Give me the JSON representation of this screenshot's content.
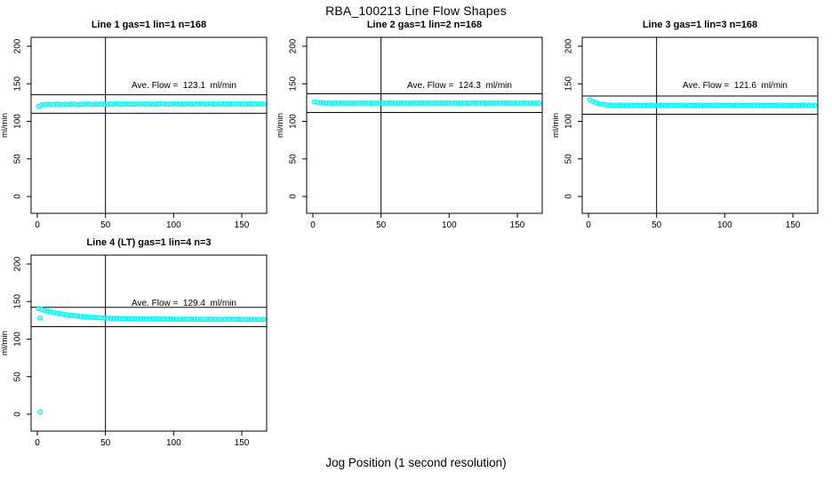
{
  "figure": {
    "title": "RBA_100213  Line Flow Shapes",
    "xlabel": "Jog Position (1 second resolution)",
    "ylabel": "ml/min",
    "background_color": "#ffffff",
    "point_color": "#00ffff",
    "line_color": "#000000"
  },
  "chart_data": [
    {
      "type": "scatter",
      "title": "Line 1 gas=1 lin=1 n=168",
      "annotation": "Ave. Flow =  123.1  ml/min",
      "avg_flow_ml_min": 123.1,
      "ylabel": "ml/min",
      "xticks": [
        0,
        50,
        100,
        150
      ],
      "yticks": [
        0,
        50,
        100,
        150,
        200
      ],
      "ylim": [
        0,
        200
      ],
      "vline_x": 50,
      "hlines": [
        135.4,
        110.8
      ],
      "x_start": 1,
      "x_step": 2.2,
      "values": [
        119.8,
        121.9,
        122.4,
        122.1,
        122.7,
        122.3,
        122.9,
        122.5,
        122.2,
        122.8,
        122.4,
        123.0,
        122.6,
        122.3,
        122.9,
        122.5,
        123.1,
        122.7,
        122.4,
        123.0,
        122.6,
        123.2,
        122.8,
        122.5,
        123.1,
        122.7,
        123.3,
        122.9,
        122.6,
        123.2,
        122.8,
        123.0,
        122.7,
        123.1,
        122.9,
        123.2,
        122.8,
        123.0,
        122.6,
        123.1,
        122.9,
        123.3,
        122.7,
        123.0,
        122.8,
        123.2,
        122.9,
        123.1,
        122.7,
        123.0,
        123.2,
        122.8,
        123.1,
        122.9,
        123.3,
        123.0,
        122.8,
        123.2,
        122.9,
        123.1,
        123.0,
        123.2,
        122.8,
        123.1,
        122.9,
        123.0,
        123.2,
        123.1,
        122.9,
        123.0,
        123.1,
        123.2,
        123.0,
        123.1,
        122.9,
        123.0
      ],
      "extra_points": []
    },
    {
      "type": "scatter",
      "title": "Line 2 gas=1 lin=2 n=168",
      "annotation": "Ave. Flow =  124.3  ml/min",
      "avg_flow_ml_min": 124.3,
      "ylabel": "ml/min",
      "xticks": [
        0,
        50,
        100,
        150
      ],
      "yticks": [
        0,
        50,
        100,
        150,
        200
      ],
      "ylim": [
        0,
        200
      ],
      "vline_x": 50,
      "hlines": [
        136.7,
        111.9
      ],
      "x_start": 1,
      "x_step": 2.2,
      "values": [
        126.0,
        125.2,
        124.8,
        124.5,
        124.3,
        124.6,
        124.2,
        124.5,
        124.1,
        124.4,
        124.2,
        124.6,
        124.3,
        124.1,
        124.5,
        124.2,
        124.4,
        124.3,
        124.6,
        124.2,
        124.4,
        124.1,
        124.5,
        124.3,
        124.2,
        124.6,
        124.3,
        124.4,
        124.2,
        124.5,
        124.3,
        124.1,
        124.4,
        124.2,
        124.6,
        124.3,
        124.5,
        124.2,
        124.4,
        124.3,
        124.1,
        124.5,
        124.3,
        124.6,
        124.2,
        124.4,
        124.3,
        124.5,
        124.1,
        124.3,
        124.4,
        124.2,
        124.6,
        124.3,
        124.4,
        124.2,
        124.5,
        124.3,
        124.1,
        124.4,
        124.3,
        124.6,
        124.2,
        124.4,
        124.3,
        124.5,
        124.2,
        124.4,
        124.3,
        124.1,
        124.5,
        124.3,
        124.4,
        124.2,
        124.3,
        124.4
      ],
      "extra_points": []
    },
    {
      "type": "scatter",
      "title": "Line 3 gas=1 lin=3 n=168",
      "annotation": "Ave. Flow =  121.6  ml/min",
      "avg_flow_ml_min": 121.6,
      "ylabel": "ml/min",
      "xticks": [
        0,
        50,
        100,
        150
      ],
      "yticks": [
        0,
        50,
        100,
        150,
        200
      ],
      "ylim": [
        0,
        200
      ],
      "vline_x": 50,
      "hlines": [
        133.8,
        109.4
      ],
      "x_start": 1,
      "x_step": 2.2,
      "values": [
        128.5,
        126.5,
        124.8,
        123.5,
        122.6,
        122.0,
        121.7,
        121.5,
        121.4,
        121.3,
        121.5,
        121.2,
        121.4,
        121.3,
        121.5,
        121.2,
        121.4,
        121.3,
        121.2,
        121.5,
        121.3,
        121.4,
        121.2,
        121.3,
        121.5,
        121.2,
        121.4,
        121.3,
        121.2,
        121.4,
        121.3,
        121.5,
        121.2,
        121.3,
        121.4,
        121.2,
        121.5,
        121.3,
        121.2,
        121.4,
        121.3,
        121.2,
        121.5,
        121.3,
        121.4,
        121.2,
        121.3,
        121.4,
        121.2,
        121.5,
        121.3,
        121.2,
        121.4,
        121.3,
        121.2,
        121.4,
        121.3,
        121.5,
        121.2,
        121.3,
        121.4,
        121.2,
        121.3,
        121.5,
        121.2,
        121.4,
        121.3,
        121.2,
        121.4,
        121.3,
        121.2,
        121.5,
        121.3,
        121.4,
        121.2,
        121.3
      ],
      "extra_points": []
    },
    {
      "type": "scatter",
      "title": "Line 4 (LT) gas=1 lin=4 n=3",
      "annotation": "Ave. Flow =  129.4  ml/min",
      "avg_flow_ml_min": 129.4,
      "ylabel": "ml/min",
      "xticks": [
        0,
        50,
        100,
        150
      ],
      "yticks": [
        0,
        50,
        100,
        150,
        200
      ],
      "ylim": [
        0,
        200
      ],
      "vline_x": 50,
      "hlines": [
        142.3,
        116.5
      ],
      "x_start": 1,
      "x_step": 2.2,
      "values": [
        140.5,
        139.3,
        138.2,
        137.2,
        136.3,
        135.4,
        134.6,
        133.9,
        133.2,
        132.6,
        132.0,
        131.5,
        131.0,
        130.6,
        130.2,
        129.8,
        129.5,
        129.2,
        128.9,
        128.7,
        128.5,
        128.3,
        128.1,
        127.9,
        127.8,
        127.6,
        127.5,
        127.4,
        127.3,
        127.2,
        127.1,
        127.0,
        127.0,
        126.9,
        126.9,
        126.8,
        126.8,
        126.8,
        126.7,
        126.7,
        126.7,
        126.6,
        126.6,
        126.6,
        126.6,
        126.5,
        126.5,
        126.5,
        126.5,
        126.5,
        126.5,
        126.4,
        126.4,
        126.4,
        126.4,
        126.4,
        126.4,
        126.4,
        126.4,
        126.3,
        126.3,
        126.3,
        126.3,
        126.3,
        126.3,
        126.3,
        126.3,
        126.3,
        126.2,
        126.2,
        126.2,
        126.2,
        126.2,
        126.2,
        126.2,
        126.2
      ],
      "extra_points": [
        [
          2,
          128.0
        ],
        [
          2,
          3.0
        ]
      ]
    }
  ]
}
